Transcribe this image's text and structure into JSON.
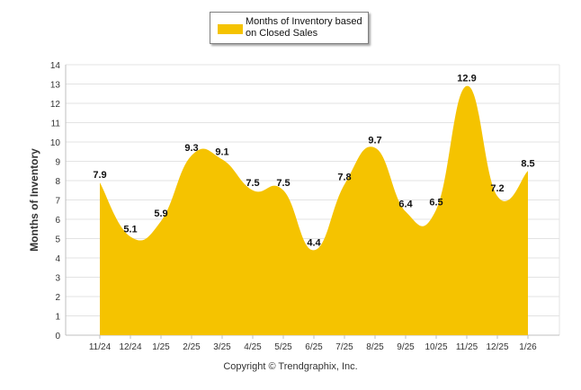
{
  "legend": {
    "label": "Months of Inventory based on Closed Sales",
    "color": "#f5c300"
  },
  "chart_data": {
    "type": "area",
    "categories": [
      "11/24",
      "12/24",
      "1/25",
      "2/25",
      "3/25",
      "4/25",
      "5/25",
      "6/25",
      "7/25",
      "8/25",
      "9/25",
      "10/25",
      "11/25",
      "12/25",
      "1/26"
    ],
    "series": [
      {
        "name": "Months of Inventory based on Closed Sales",
        "values": [
          7.9,
          5.1,
          5.9,
          9.3,
          9.1,
          7.5,
          7.5,
          4.4,
          7.8,
          9.7,
          6.4,
          6.5,
          12.9,
          7.2,
          8.5
        ],
        "color": "#f5c300"
      }
    ],
    "ylabel": "Months of Inventory",
    "xlabel": "",
    "ylim": [
      0,
      14
    ],
    "yticks": [
      0,
      1,
      2,
      3,
      4,
      5,
      6,
      7,
      8,
      9,
      10,
      11,
      12,
      13,
      14
    ],
    "grid": true,
    "legend_position": "top-center"
  },
  "footer": {
    "copyright": "Copyright © Trendgraphix, Inc."
  }
}
